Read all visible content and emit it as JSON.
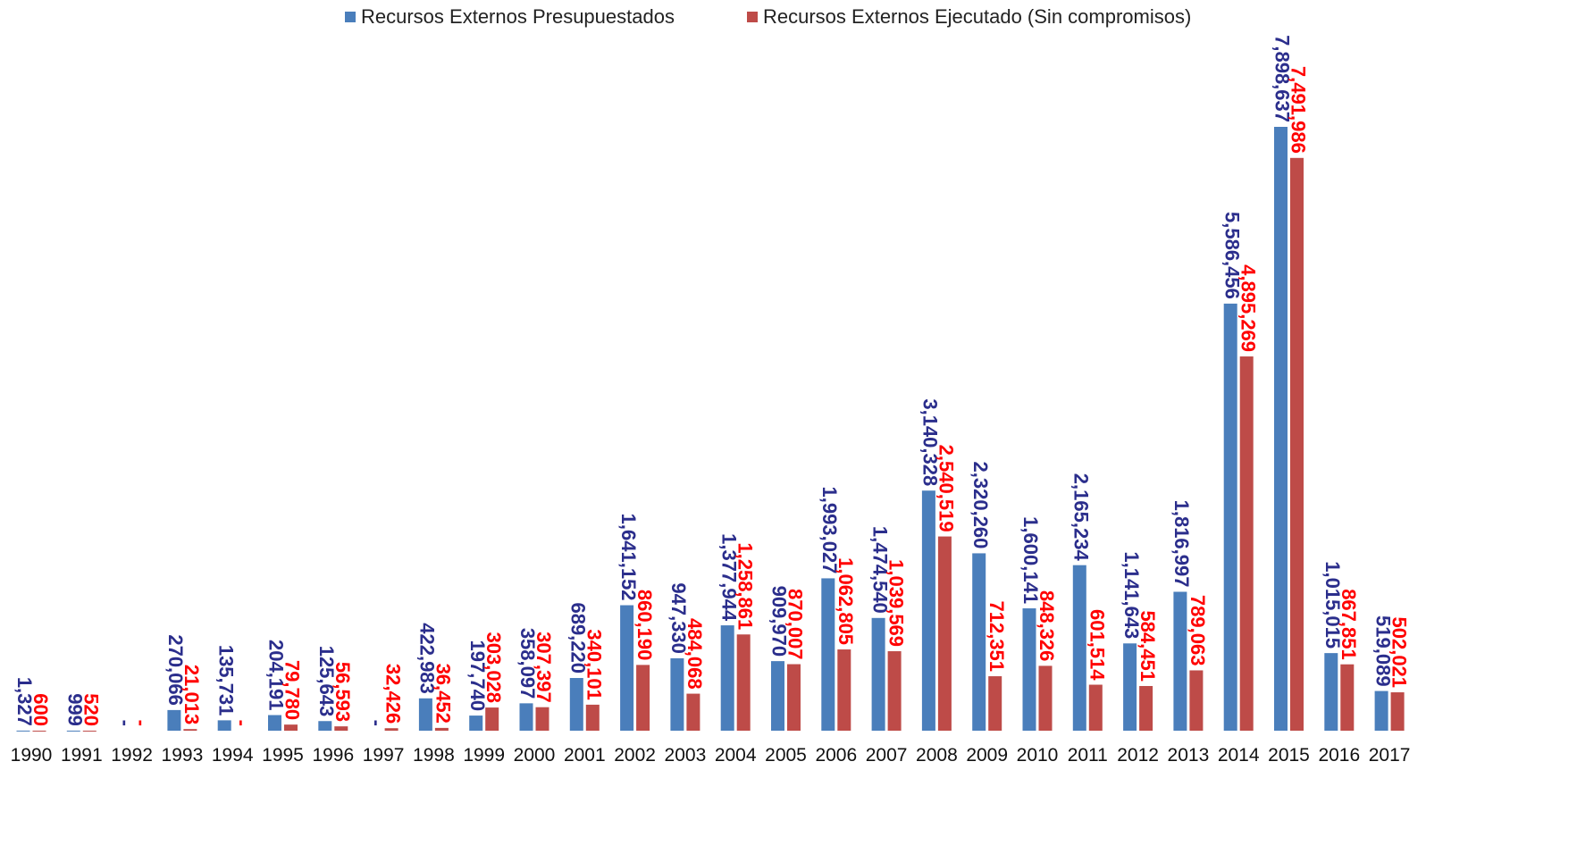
{
  "legend": {
    "budgeted_label": "Recursos Externos Presupuestados",
    "executed_label": "Recursos Externos Ejecutado (Sin compromisos)"
  },
  "colors": {
    "budgeted_bar": "#4a7ebb",
    "executed_bar": "#be4b48",
    "budgeted_text": "#2b2e8c",
    "executed_text": "#ff0000"
  },
  "chart_data": {
    "type": "bar",
    "categories": [
      "1990",
      "1991",
      "1992",
      "1993",
      "1994",
      "1995",
      "1996",
      "1997",
      "1998",
      "1999",
      "2000",
      "2001",
      "2002",
      "2003",
      "2004",
      "2005",
      "2006",
      "2007",
      "2008",
      "2009",
      "2010",
      "2011",
      "2012",
      "2013",
      "2014",
      "2015",
      "2016",
      "2017"
    ],
    "series": [
      {
        "name": "Recursos Externos Presupuestados",
        "values": [
          1327,
          999,
          0,
          270066,
          135731,
          204191,
          125643,
          0,
          422983,
          197740,
          358097,
          689220,
          1641152,
          947330,
          1377944,
          909970,
          1993027,
          1474540,
          3140328,
          2320260,
          1600141,
          2165234,
          1141643,
          1816997,
          5586456,
          7898637,
          1015015,
          519089
        ],
        "labels": [
          "1,327",
          "999",
          "-",
          "270,066",
          "135,731",
          "204,191",
          "125,643",
          "-",
          "422,983",
          "197,740",
          "358,097",
          "689,220",
          "1,641,152",
          "947,330",
          "1,377,944",
          "909,970",
          "1,993,027",
          "1,474,540",
          "3,140,328",
          "2,320,260",
          "1,600,141",
          "2,165,234",
          "1,141,643",
          "1,816,997",
          "5,586,456",
          "7,898,637",
          "1,015,015",
          "519,089"
        ]
      },
      {
        "name": "Recursos Externos Ejecutado (Sin compromisos)",
        "values": [
          600,
          520,
          0,
          21013,
          0,
          79780,
          56593,
          32426,
          36452,
          303028,
          307397,
          340101,
          860190,
          484068,
          1258861,
          870007,
          1062805,
          1039569,
          2540519,
          712351,
          848326,
          601514,
          584451,
          789063,
          4895269,
          7491986,
          867851,
          502021
        ],
        "labels": [
          "600",
          "520",
          "-",
          "21,013",
          "-",
          "79,780",
          "56,593",
          "32,426",
          "36,452",
          "303,028",
          "307,397",
          "340,101",
          "860,190",
          "484,068",
          "1,258,861",
          "870,007",
          "1,062,805",
          "1,039,569",
          "2,540,519",
          "712,351",
          "848,326",
          "601,514",
          "584,451",
          "789,063",
          "4,895,269",
          "7,491,986",
          "867,851",
          "502,021"
        ]
      }
    ],
    "ylim": [
      0,
      8000000
    ],
    "grid": false,
    "legend_position": "top-center",
    "value_label_orientation": "vertical"
  }
}
